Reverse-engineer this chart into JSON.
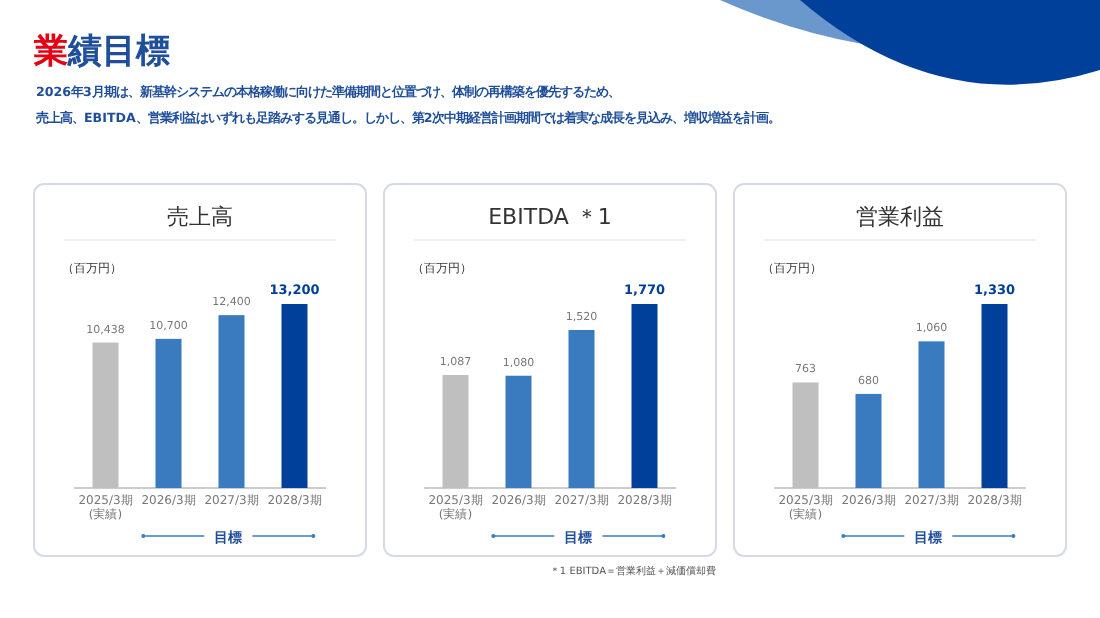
{
  "chart_data": [
    {
      "type": "bar",
      "title": "売上高",
      "ylabel": "（百万円）",
      "categories": [
        "2025/3期\n(実績)",
        "2026/3期",
        "2027/3期",
        "2028/3期"
      ],
      "values": [
        10438,
        10700,
        12400,
        13200
      ],
      "value_labels": [
        "10,438",
        "10,700",
        "12,400",
        "13,200"
      ],
      "colors": [
        "#bfbfbf",
        "#3a7bbf",
        "#3a7bbf",
        "#003f9a"
      ],
      "annotations": [
        "目標",
        "業績目標",
        "2026年3月期は、新基幹システムの本格稼働に向けた準備期間と位置づけ、体制の再構築を優先するため、",
        "売上高、EBITDA、営業利益はいずれも足踏みする見通し。しかし、第2次中期経営計画期間では着実な成長を見込み、増収増益を計画。"
      ]
    },
    {
      "type": "bar",
      "title": "EBITDA ＊1",
      "ylabel": "（百万円）",
      "categories": [
        "2025/3期\n(実績)",
        "2026/3期",
        "2027/3期",
        "2028/3期"
      ],
      "values": [
        1087,
        1080,
        1520,
        1770
      ],
      "value_labels": [
        "1,087",
        "1,080",
        "1,520",
        "1,770"
      ],
      "colors": [
        "#bfbfbf",
        "#3a7bbf",
        "#3a7bbf",
        "#003f9a"
      ],
      "annotations": [
        "目標",
        "＊1 EBITDA＝営業利益＋減価償却費"
      ]
    },
    {
      "type": "bar",
      "title": "営業利益",
      "ylabel": "（百万円）",
      "categories": [
        "2025/3期\n(実績)",
        "2026/3期",
        "2027/3期",
        "2028/3期"
      ],
      "values": [
        763,
        680,
        1060,
        1330
      ],
      "value_labels": [
        "763",
        "680",
        "1,060",
        "1,330"
      ],
      "colors": [
        "#bfbfbf",
        "#3a7bbf",
        "#3a7bbf",
        "#003f9a"
      ],
      "annotations": [
        "目標"
      ]
    }
  ]
}
